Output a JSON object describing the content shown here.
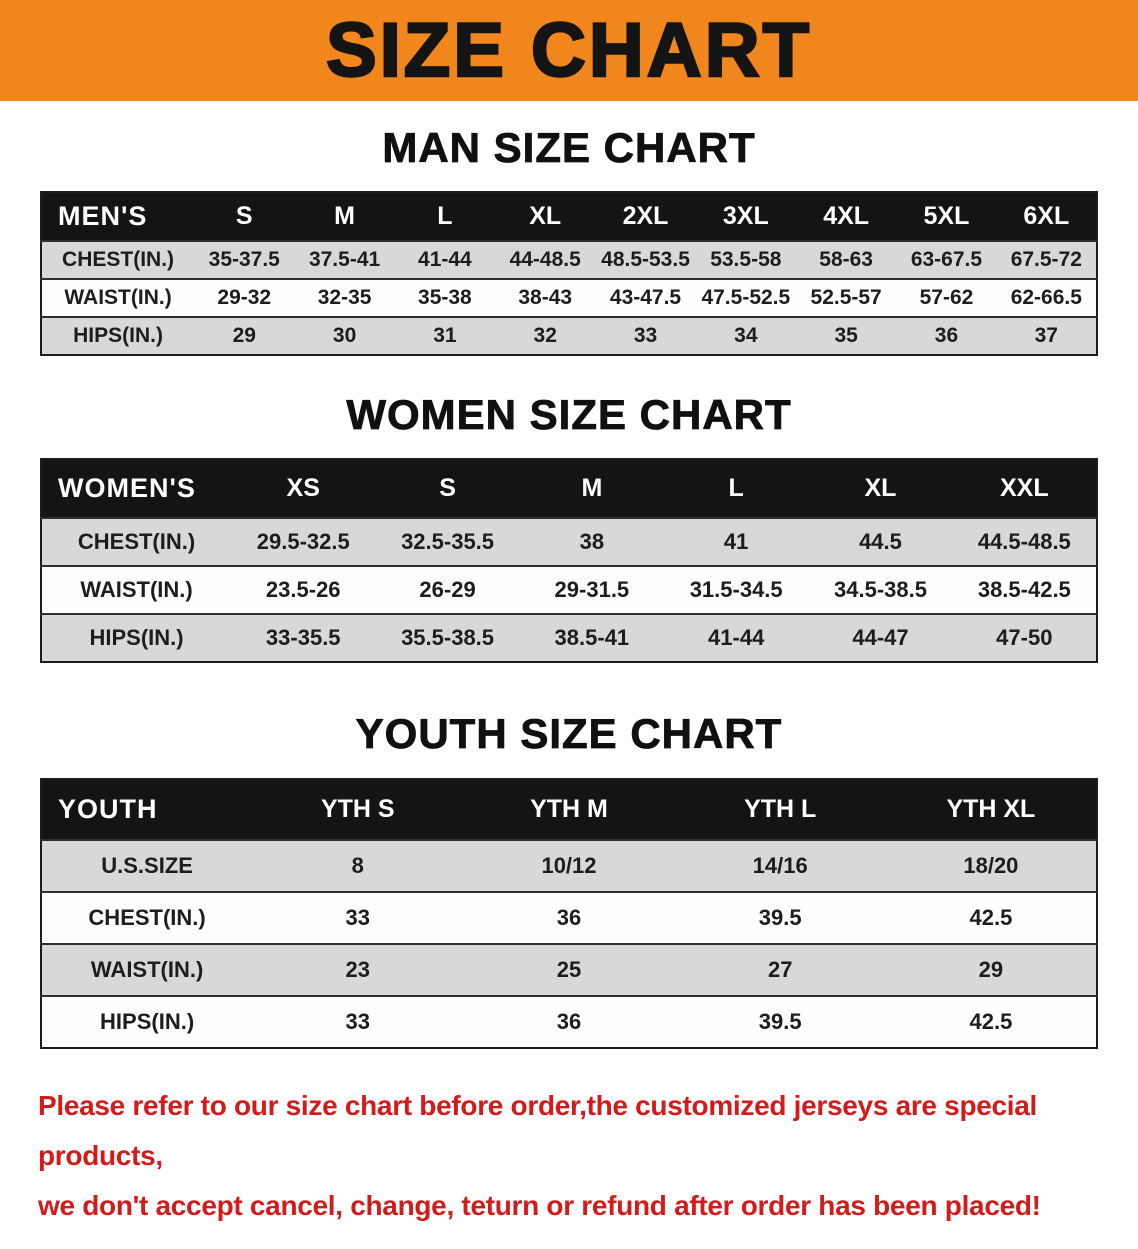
{
  "banner": {
    "title": "SIZE CHART",
    "background_color": "#f1861c",
    "text_color": "#141414"
  },
  "sections": [
    {
      "id": "men",
      "heading": "MAN SIZE CHART",
      "table": {
        "header": [
          "MEN'S",
          "S",
          "M",
          "L",
          "XL",
          "2XL",
          "3XL",
          "4XL",
          "5XL",
          "6XL"
        ],
        "rows": [
          [
            "CHEST(IN.)",
            "35-37.5",
            "37.5-41",
            "41-44",
            "44-48.5",
            "48.5-53.5",
            "53.5-58",
            "58-63",
            "63-67.5",
            "67.5-72"
          ],
          [
            "WAIST(IN.)",
            "29-32",
            "32-35",
            "35-38",
            "38-43",
            "43-47.5",
            "47.5-52.5",
            "52.5-57",
            "57-62",
            "62-66.5"
          ],
          [
            "HIPS(IN.)",
            "29",
            "30",
            "31",
            "32",
            "33",
            "34",
            "35",
            "36",
            "37"
          ]
        ]
      }
    },
    {
      "id": "women",
      "heading": "WOMEN SIZE CHART",
      "table": {
        "header": [
          "WOMEN'S",
          "XS",
          "S",
          "M",
          "L",
          "XL",
          "XXL"
        ],
        "rows": [
          [
            "CHEST(IN.)",
            "29.5-32.5",
            "32.5-35.5",
            "38",
            "41",
            "44.5",
            "44.5-48.5"
          ],
          [
            "WAIST(IN.)",
            "23.5-26",
            "26-29",
            "29-31.5",
            "31.5-34.5",
            "34.5-38.5",
            "38.5-42.5"
          ],
          [
            "HIPS(IN.)",
            "33-35.5",
            "35.5-38.5",
            "38.5-41",
            "41-44",
            "44-47",
            "47-50"
          ]
        ]
      }
    },
    {
      "id": "youth",
      "heading": "YOUTH SIZE CHART",
      "table": {
        "header": [
          "YOUTH",
          "YTH S",
          "YTH M",
          "YTH L",
          "YTH XL"
        ],
        "rows": [
          [
            "U.S.SIZE",
            "8",
            "10/12",
            "14/16",
            "18/20"
          ],
          [
            "CHEST(IN.)",
            "33",
            "36",
            "39.5",
            "42.5"
          ],
          [
            "WAIST(IN.)",
            "23",
            "25",
            "27",
            "29"
          ],
          [
            "HIPS(IN.)",
            "33",
            "36",
            "39.5",
            "42.5"
          ]
        ]
      }
    }
  ],
  "disclaimer": {
    "text_color": "#d41b1b",
    "lines": [
      "Please refer to our size chart before order,the customized jerseys are special products,",
      "we don't accept cancel, change, teturn or refund after order has been placed!"
    ]
  },
  "colors": {
    "table_header_bg": "#141414",
    "table_header_text": "#ffffff",
    "row_alt_bg": "#d8d8d8",
    "row_bg": "#ffffff"
  }
}
